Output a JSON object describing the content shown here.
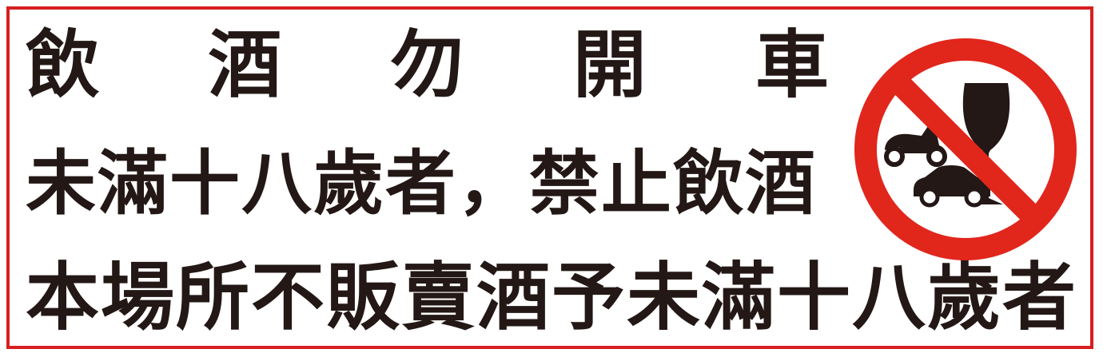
{
  "sign": {
    "line1_chars": [
      "飲",
      "酒",
      "勿",
      "開",
      "車"
    ],
    "line2": "未滿十八歲者，禁止飲酒",
    "line3": "本場所不販賣酒予未滿十八歲者"
  },
  "icons": {
    "prohibition": "no-drinking-driving-icon",
    "glass": "wine-glass-icon",
    "scooter": "scooter-icon",
    "car": "car-icon"
  },
  "colors": {
    "border": "#d61f1f",
    "prohibition_red": "#e1261c",
    "text": "#231815"
  }
}
